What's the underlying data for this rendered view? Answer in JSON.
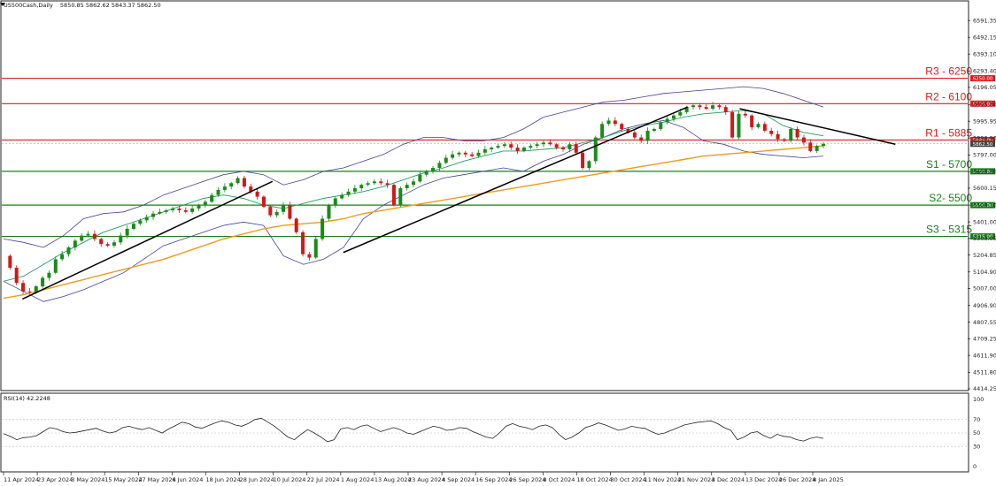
{
  "chart_data": {
    "type": "candlestick",
    "header": {
      "symbol": "US500Cash,Daily",
      "ohlc": "5850.85 5862.62 5843.37 5862.50"
    },
    "y_range": [
      4414.25,
      6650
    ],
    "y_ticks": [
      "6591.35",
      "6492.15",
      "6393.10",
      "6293.40",
      "6196.05",
      "6095.00",
      "5995.95",
      "5896.90",
      "5797.00",
      "5698.00",
      "5600.15",
      "5500.10",
      "5401.00",
      "5303.05",
      "5204.85",
      "5104.90",
      "5007.00",
      "4906.90",
      "4807.55",
      "4709.25",
      "4611.90",
      "4511.80",
      "4414.25"
    ],
    "x_labels": [
      "11 Apr 2024",
      "23 Apr 2024",
      "3 May 2024",
      "15 May 2024",
      "27 May 2024",
      "6 Jun 2024",
      "18 Jun 2024",
      "28 Jun 2024",
      "10 Jul 2024",
      "22 Jul 2024",
      "1 Aug 2024",
      "13 Aug 2024",
      "23 Aug 2024",
      "4 Sep 2024",
      "16 Sep 2024",
      "26 Sep 2024",
      "8 Oct 2024",
      "18 Oct 2024",
      "30 Oct 2024",
      "11 Nov 2024",
      "21 Nov 2024",
      "3 Dec 2024",
      "13 Dec 2024",
      "26 Dec 2024",
      "8 Jan 2025"
    ],
    "price_tag": "5862.50",
    "levels": [
      {
        "label": "R3 - 6250",
        "value": 6250,
        "tag": "6250.00",
        "color": "#e01c1c"
      },
      {
        "label": "R2 - 6100",
        "value": 6100,
        "tag": "6100.00",
        "color": "#e01c1c"
      },
      {
        "label": "R1 - 5885",
        "value": 5885,
        "tag": "5885.00",
        "color": "#e01c1c"
      },
      {
        "label": "S1 - 5700",
        "value": 5700,
        "tag": "5700.00",
        "color": "#1a7f1a"
      },
      {
        "label": "S2- 5500",
        "value": 5500,
        "tag": "5500.00",
        "color": "#1a7f1a"
      },
      {
        "label": "S3 - 5315",
        "value": 5315,
        "tag": "5315.00",
        "color": "#1a7f1a"
      }
    ],
    "close_path": [
      5200,
      5130,
      5040,
      4990,
      4985,
      5020,
      5070,
      5100,
      5180,
      5210,
      5250,
      5290,
      5320,
      5330,
      5300,
      5270,
      5260,
      5280,
      5320,
      5360,
      5390,
      5410,
      5430,
      5450,
      5460,
      5470,
      5480,
      5470,
      5460,
      5480,
      5500,
      5520,
      5560,
      5590,
      5610,
      5630,
      5660,
      5610,
      5580,
      5550,
      5490,
      5440,
      5460,
      5500,
      5420,
      5340,
      5210,
      5190,
      5300,
      5420,
      5500,
      5540,
      5560,
      5580,
      5600,
      5620,
      5630,
      5640,
      5630,
      5620,
      5500,
      5600,
      5620,
      5640,
      5680,
      5700,
      5720,
      5750,
      5780,
      5800,
      5810,
      5800,
      5790,
      5810,
      5830,
      5840,
      5850,
      5860,
      5840,
      5820,
      5840,
      5850,
      5860,
      5870,
      5860,
      5840,
      5830,
      5860,
      5810,
      5720,
      5760,
      5900,
      5980,
      6000,
      5980,
      5950,
      5930,
      5900,
      5880,
      5940,
      5950,
      5990,
      6010,
      6030,
      6050,
      6080,
      6090,
      6080,
      6070,
      6090,
      6080,
      6050,
      5900,
      6040,
      6030,
      5960,
      5980,
      5940,
      5920,
      5890,
      5880,
      5950,
      5900,
      5870,
      5820,
      5850,
      5862
    ],
    "ema200_path": [
      4950,
      4970,
      5000,
      5030,
      5060,
      5090,
      5120,
      5150,
      5180,
      5220,
      5260,
      5300,
      5330,
      5360,
      5380,
      5390,
      5400,
      5420,
      5450,
      5470,
      5490,
      5510,
      5530,
      5550,
      5570,
      5590,
      5610,
      5630,
      5650,
      5670,
      5690,
      5710,
      5730,
      5750,
      5770,
      5790,
      5800,
      5810,
      5820,
      5830,
      5840,
      5850
    ],
    "ma50_path": [
      5050,
      5080,
      5150,
      5220,
      5280,
      5340,
      5380,
      5420,
      5460,
      5500,
      5540,
      5560,
      5540,
      5500,
      5480,
      5510,
      5540,
      5560,
      5580,
      5610,
      5650,
      5690,
      5720,
      5760,
      5790,
      5820,
      5820,
      5830,
      5840,
      5870,
      5900,
      5940,
      5970,
      5990,
      6020,
      6040,
      6050,
      6060,
      6040,
      5970,
      5930,
      5910
    ],
    "bb_upper_path": [
      5300,
      5280,
      5250,
      5320,
      5420,
      5450,
      5460,
      5500,
      5560,
      5600,
      5640,
      5680,
      5700,
      5680,
      5620,
      5650,
      5700,
      5720,
      5760,
      5800,
      5860,
      5900,
      5900,
      5880,
      5880,
      5900,
      5950,
      6020,
      6050,
      6080,
      6110,
      6120,
      6140,
      6160,
      6170,
      6180,
      6190,
      6200,
      6190,
      6160,
      6120,
      6080
    ],
    "bb_lower_path": [
      5050,
      4990,
      4930,
      4960,
      5000,
      5050,
      5100,
      5180,
      5260,
      5300,
      5340,
      5380,
      5400,
      5380,
      5200,
      5150,
      5180,
      5250,
      5420,
      5500,
      5560,
      5620,
      5660,
      5680,
      5700,
      5720,
      5700,
      5760,
      5800,
      5860,
      5900,
      5950,
      5980,
      6000,
      5960,
      5880,
      5860,
      5820,
      5800,
      5790,
      5780,
      5790
    ],
    "trendlines": [
      {
        "name": "uptrend-1",
        "points": [
          [
            0.02,
            4945
          ],
          [
            0.285,
            5640
          ]
        ]
      },
      {
        "name": "uptrend-2",
        "points": [
          [
            0.36,
            5220
          ],
          [
            0.725,
            6080
          ]
        ]
      },
      {
        "name": "downtrend",
        "points": [
          [
            0.78,
            6070
          ],
          [
            0.945,
            5860
          ]
        ]
      }
    ],
    "rsi": {
      "label": "RSI(14) 42.2248",
      "ticks": [
        "100",
        "70",
        "50",
        "30",
        "0"
      ],
      "values": [
        49,
        45,
        40,
        43,
        44,
        46,
        52,
        58,
        56,
        52,
        50,
        51,
        53,
        55,
        57,
        53,
        50,
        52,
        58,
        60,
        57,
        55,
        58,
        54,
        50,
        56,
        61,
        66,
        64,
        59,
        57,
        61,
        65,
        68,
        66,
        62,
        60,
        64,
        70,
        72,
        66,
        60,
        52,
        44,
        40,
        48,
        55,
        50,
        44,
        37,
        40,
        56,
        58,
        55,
        60,
        62,
        57,
        52,
        55,
        58,
        55,
        50,
        48,
        52,
        56,
        60,
        58,
        54,
        55,
        58,
        57,
        52,
        48,
        44,
        42,
        50,
        60,
        64,
        60,
        58,
        55,
        60,
        62,
        58,
        48,
        40,
        44,
        50,
        58,
        61,
        65,
        62,
        58,
        54,
        56,
        60,
        58,
        57,
        52,
        48,
        50,
        54,
        58,
        62,
        64,
        66,
        67,
        68,
        64,
        58,
        54,
        40,
        44,
        50,
        52,
        46,
        42,
        48,
        45,
        44,
        40,
        38,
        42,
        44,
        42
      ]
    }
  }
}
